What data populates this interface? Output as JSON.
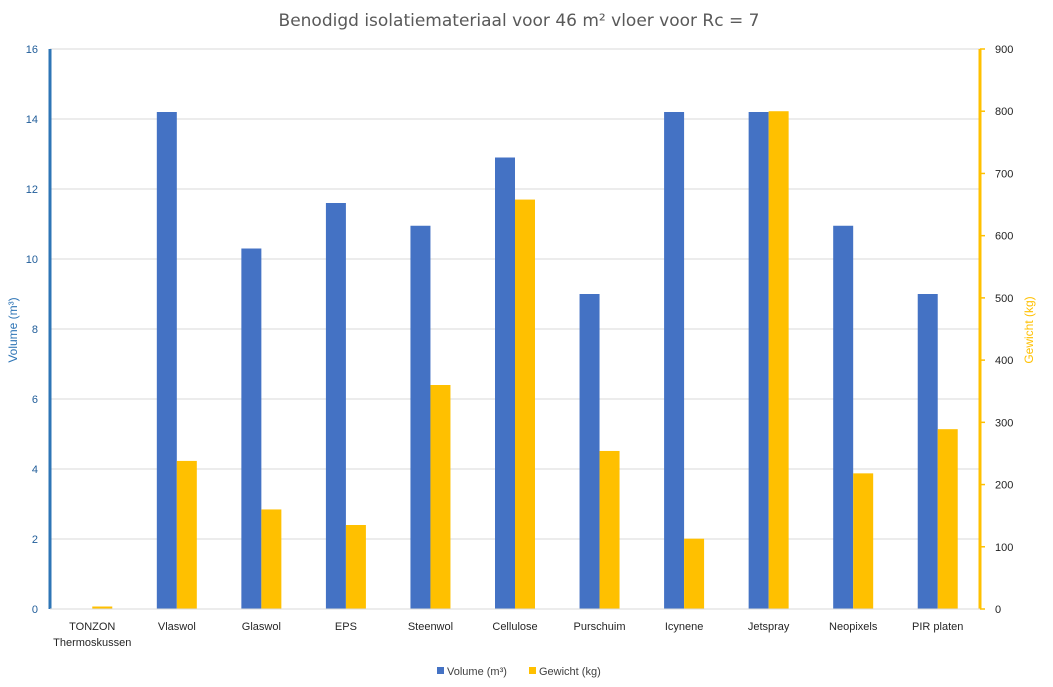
{
  "chart_data": {
    "type": "bar",
    "title": "Benodigd isolatiemateriaal voor 46 m² vloer voor Rc = 7",
    "categories": [
      "TONZON Thermoskussen",
      "Vlaswol",
      "Glaswol",
      "EPS",
      "Steenwol",
      "Cellulose",
      "Purschuim",
      "Icynene",
      "Jetspray",
      "Neopixels",
      "PIR platen"
    ],
    "category_lines": [
      [
        "TONZON",
        "Thermoskussen"
      ],
      [
        "Vlaswol"
      ],
      [
        "Glaswol"
      ],
      [
        "EPS"
      ],
      [
        "Steenwol"
      ],
      [
        "Cellulose"
      ],
      [
        "Purschuim"
      ],
      [
        "Icynene"
      ],
      [
        "Jetspray"
      ],
      [
        "Neopixels"
      ],
      [
        "PIR platen"
      ]
    ],
    "series": [
      {
        "name": "Volume (m³)",
        "axis": "left",
        "color": "#4472c4",
        "values": [
          0,
          14.2,
          10.3,
          11.6,
          10.95,
          12.9,
          9.0,
          14.2,
          14.2,
          10.95,
          9.0
        ]
      },
      {
        "name": "Gewicht (kg)",
        "axis": "right",
        "color": "#ffc000",
        "values": [
          4,
          238,
          160,
          135,
          360,
          658,
          254,
          113,
          800,
          218,
          289
        ]
      }
    ],
    "y_left": {
      "label": "Volume (m³)",
      "ylim": [
        0,
        16
      ],
      "ticks": [
        "0",
        "2",
        "4",
        "6",
        "8",
        "10",
        "12",
        "14",
        "16"
      ],
      "color": "#2e75b6"
    },
    "y_right": {
      "label": "Gewicht (kg)",
      "ylim": [
        0,
        900
      ],
      "ticks": [
        "0",
        "100",
        "200",
        "300",
        "400",
        "500",
        "600",
        "700",
        "800",
        "900"
      ],
      "color": "#ffc000"
    },
    "grid": true,
    "legend": "bottom"
  }
}
